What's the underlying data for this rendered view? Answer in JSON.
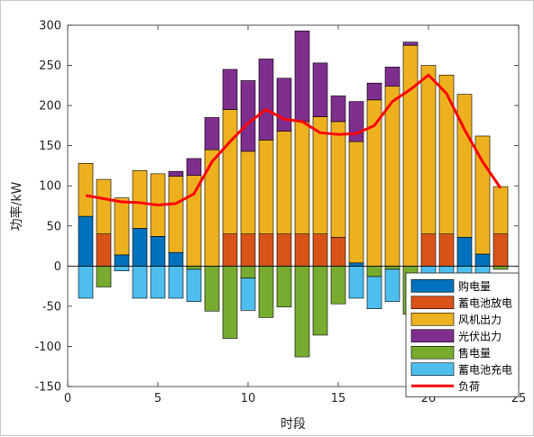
{
  "chart_data": {
    "type": "bar",
    "stacked": true,
    "xlabel": "时段",
    "ylabel": "功率/kW",
    "xlim": [
      0,
      25
    ],
    "ylim": [
      -150,
      300
    ],
    "xticks": [
      0,
      5,
      10,
      15,
      20,
      25
    ],
    "yticks": [
      -150,
      -100,
      -50,
      0,
      50,
      100,
      150,
      200,
      250,
      300
    ],
    "grid": false,
    "legend_position": "bottom-right",
    "x": [
      1,
      2,
      3,
      4,
      5,
      6,
      7,
      8,
      9,
      10,
      11,
      12,
      13,
      14,
      15,
      16,
      17,
      18,
      19,
      20,
      21,
      22,
      23,
      24
    ],
    "series": [
      {
        "name": "购电量",
        "color": "#0072BD",
        "stack": "positive",
        "values": [
          62,
          0,
          14,
          47,
          37,
          17,
          0,
          0,
          0,
          0,
          0,
          0,
          0,
          0,
          0,
          4,
          0,
          0,
          0,
          0,
          0,
          36,
          15,
          0
        ]
      },
      {
        "name": "蓄电池放电",
        "color": "#D95319",
        "stack": "positive",
        "values": [
          0,
          40,
          0,
          0,
          0,
          0,
          0,
          0,
          40,
          40,
          40,
          40,
          40,
          40,
          36,
          0,
          0,
          0,
          0,
          40,
          40,
          0,
          0,
          40
        ]
      },
      {
        "name": "风机出力",
        "color": "#EDB120",
        "stack": "positive",
        "values": [
          66,
          68,
          71,
          72,
          78,
          95,
          113,
          145,
          155,
          103,
          117,
          128,
          140,
          146,
          144,
          151,
          207,
          224,
          275,
          210,
          198,
          178,
          147,
          59
        ]
      },
      {
        "name": "光伏出力",
        "color": "#7E2F8E",
        "stack": "positive",
        "values": [
          0,
          0,
          0,
          0,
          0,
          6,
          21,
          40,
          50,
          88,
          101,
          66,
          113,
          67,
          32,
          50,
          21,
          24,
          4,
          0,
          0,
          0,
          0,
          0
        ]
      },
      {
        "name": "售电量",
        "color": "#77AC30",
        "stack": "negative",
        "values": [
          0,
          -26,
          0,
          0,
          0,
          0,
          -4,
          -56,
          -90,
          -15,
          -64,
          -51,
          -113,
          -86,
          -47,
          0,
          -13,
          -4,
          -60,
          0,
          0,
          0,
          0,
          -4
        ]
      },
      {
        "name": "蓄电池充电",
        "color": "#4DBEEE",
        "stack": "negative",
        "values": [
          -40,
          0,
          -6,
          -40,
          -40,
          -40,
          -40,
          0,
          0,
          -40,
          0,
          0,
          0,
          0,
          0,
          -40,
          -40,
          -40,
          0,
          -40,
          -40,
          -40,
          -40,
          0
        ]
      }
    ],
    "line_series": {
      "name": "负荷",
      "color": "#FF0000",
      "values": [
        88,
        84,
        80,
        79,
        76,
        78,
        90,
        130,
        155,
        178,
        195,
        183,
        180,
        166,
        164,
        165,
        175,
        205,
        220,
        238,
        215,
        170,
        130,
        97
      ]
    }
  }
}
